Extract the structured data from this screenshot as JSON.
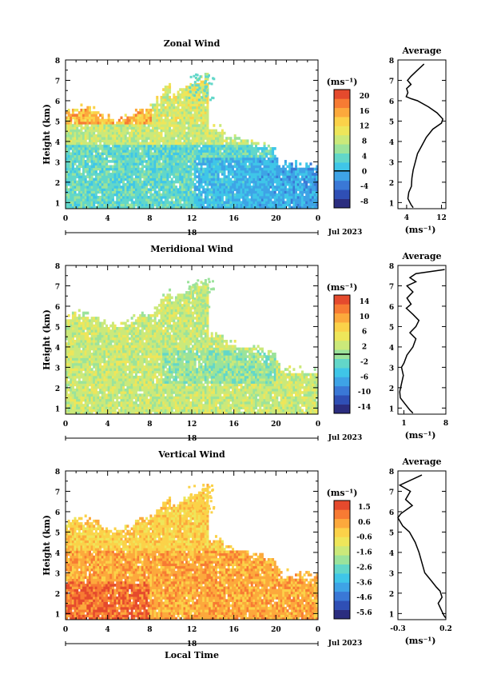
{
  "figure": {
    "date_label": "Jul 2023",
    "xlabel": "Local Time",
    "ylabel": "Height (km)",
    "day_label": "18",
    "x_ticks": [
      "0",
      "4",
      "8",
      "12",
      "16",
      "20",
      "0"
    ],
    "y_ticks": [
      "1",
      "2",
      "3",
      "4",
      "5",
      "6",
      "7",
      "8"
    ],
    "unit": "(ms⁻¹)"
  },
  "colormap": [
    "#2b2d7f",
    "#2f4fb5",
    "#3a78d6",
    "#3ea3e6",
    "#3fc6e8",
    "#62d7c9",
    "#9be39b",
    "#cbe97a",
    "#eee65a",
    "#fbd249",
    "#fca93c",
    "#f77b33",
    "#e54a2d"
  ],
  "chart_data": [
    {
      "type": "heatmap",
      "title": "Zonal Wind",
      "xlabel": "",
      "ylabel": "Height (km)",
      "xlim": [
        0,
        24
      ],
      "ylim": [
        0.7,
        8
      ],
      "colorbar": {
        "ticks": [
          "20",
          "16",
          "12",
          "8",
          "4",
          "0",
          "-4",
          "-8"
        ],
        "min": -10,
        "max": 22,
        "contour": 0
      },
      "profile": {
        "title": "Average",
        "xlabel": "(ms⁻¹)",
        "xlim": [
          2,
          13
        ],
        "x_ticks": [
          "4",
          "12"
        ],
        "points": [
          [
            8,
            7.8
          ],
          [
            6.5,
            7.5
          ],
          [
            5,
            7.2
          ],
          [
            4.2,
            7.0
          ],
          [
            5,
            6.8
          ],
          [
            4,
            6.6
          ],
          [
            4.3,
            6.4
          ],
          [
            3.9,
            6.2
          ],
          [
            5,
            6.1
          ],
          [
            6.5,
            6.0
          ],
          [
            9,
            5.7
          ],
          [
            11,
            5.4
          ],
          [
            12.3,
            5.1
          ],
          [
            12,
            4.9
          ],
          [
            10,
            4.6
          ],
          [
            8.5,
            4.2
          ],
          [
            7.5,
            3.8
          ],
          [
            6.5,
            3.4
          ],
          [
            6,
            3.0
          ],
          [
            5.5,
            2.6
          ],
          [
            5.2,
            2.2
          ],
          [
            5.1,
            1.8
          ],
          [
            4.5,
            1.5
          ],
          [
            4.3,
            1.2
          ],
          [
            5,
            0.9
          ],
          [
            5.5,
            0.75
          ]
        ]
      }
    },
    {
      "type": "heatmap",
      "title": "Meridional Wind",
      "xlabel": "",
      "ylabel": "Height (km)",
      "xlim": [
        0,
        24
      ],
      "ylim": [
        0.7,
        8
      ],
      "colorbar": {
        "ticks": [
          "14",
          "10",
          "6",
          "2",
          "-2",
          "-6",
          "-10",
          "-14"
        ],
        "min": -16,
        "max": 16,
        "contour": 0
      },
      "profile": {
        "title": "Average",
        "xlabel": "(ms⁻¹)",
        "xlim": [
          0,
          8
        ],
        "x_ticks": [
          "1",
          "8"
        ],
        "points": [
          [
            7.8,
            7.8
          ],
          [
            3,
            7.6
          ],
          [
            2,
            7.4
          ],
          [
            3,
            7.2
          ],
          [
            1.5,
            7.0
          ],
          [
            2.5,
            6.7
          ],
          [
            1.5,
            6.4
          ],
          [
            2.2,
            6.1
          ],
          [
            1.4,
            5.9
          ],
          [
            2.5,
            5.6
          ],
          [
            3.5,
            5.3
          ],
          [
            3,
            5.0
          ],
          [
            2,
            4.7
          ],
          [
            3,
            4.4
          ],
          [
            2.5,
            4.0
          ],
          [
            1.5,
            3.6
          ],
          [
            1.0,
            3.2
          ],
          [
            0.6,
            3.0
          ],
          [
            0.9,
            2.6
          ],
          [
            0.6,
            2.2
          ],
          [
            0.3,
            1.8
          ],
          [
            0.4,
            1.5
          ],
          [
            1.2,
            1.2
          ],
          [
            2,
            0.9
          ],
          [
            2.5,
            0.75
          ]
        ]
      }
    },
    {
      "type": "heatmap",
      "title": "Vertical Wind",
      "xlabel": "Local Time",
      "ylabel": "Height (km)",
      "xlim": [
        0,
        24
      ],
      "ylim": [
        0.7,
        8
      ],
      "colorbar": {
        "ticks": [
          "1.5",
          "0.6",
          "-0.6",
          "-1.6",
          "-2.6",
          "-3.6",
          "-4.6",
          "-5.6"
        ],
        "min": -6,
        "max": 2,
        "contour": null
      },
      "profile": {
        "title": "Average",
        "xlabel": "(ms⁻¹)",
        "xlim": [
          -0.3,
          0.2
        ],
        "x_ticks": [
          "-0.3",
          "0.2"
        ],
        "points": [
          [
            -0.05,
            7.8
          ],
          [
            -0.28,
            7.3
          ],
          [
            -0.17,
            7.0
          ],
          [
            -0.22,
            6.6
          ],
          [
            -0.15,
            6.3
          ],
          [
            -0.27,
            5.9
          ],
          [
            -0.3,
            5.7
          ],
          [
            -0.25,
            5.3
          ],
          [
            -0.18,
            5.0
          ],
          [
            -0.12,
            4.5
          ],
          [
            -0.08,
            4.0
          ],
          [
            -0.05,
            3.5
          ],
          [
            -0.02,
            3.0
          ],
          [
            0.05,
            2.6
          ],
          [
            0.1,
            2.3
          ],
          [
            0.14,
            2.1
          ],
          [
            0.16,
            1.8
          ],
          [
            0.12,
            1.5
          ],
          [
            0.15,
            1.2
          ],
          [
            0.18,
            0.9
          ],
          [
            0.2,
            0.78
          ]
        ]
      }
    }
  ]
}
